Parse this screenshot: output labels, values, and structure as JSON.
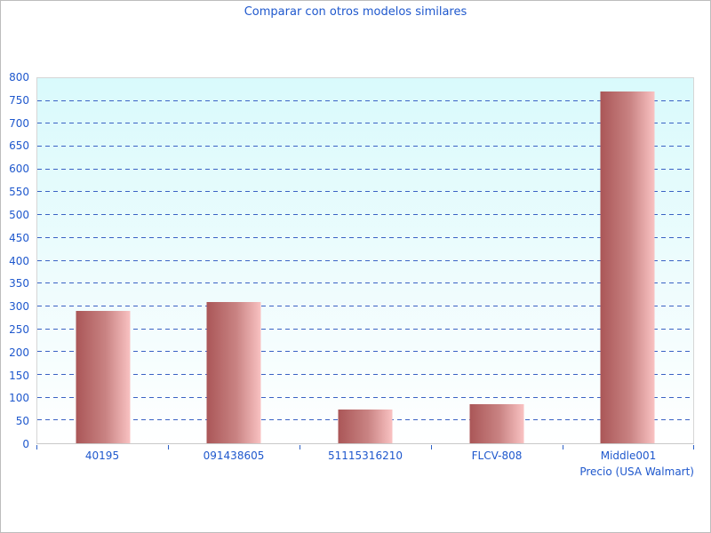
{
  "window": {
    "background": "#ffffff",
    "frame_border_color": "#bdbdbd"
  },
  "chart_data": {
    "type": "bar",
    "title": "Comparar con otros modelos similares",
    "categories": [
      "40195",
      "091438605",
      "51115316210",
      "FLCV-808",
      "Middle001"
    ],
    "values": [
      290,
      310,
      74,
      86,
      770
    ],
    "xlabel": "Precio (USA Walmart)",
    "ylabel": "",
    "ylim": [
      0,
      800
    ],
    "ytick_step": 50,
    "grid": "horizontal-dashed",
    "legend_position": "none",
    "colors": {
      "title_text": "#1f58cd",
      "tick_text": "#1f58cd",
      "gridline": "#3a62c4",
      "plot_bg_top": "#d9fafc",
      "plot_bg_bottom": "#ffffff",
      "bar_gradient_left": "#aa5657",
      "bar_gradient_right": "#f9c2c2",
      "axis_line": "#c9c9c9"
    }
  }
}
